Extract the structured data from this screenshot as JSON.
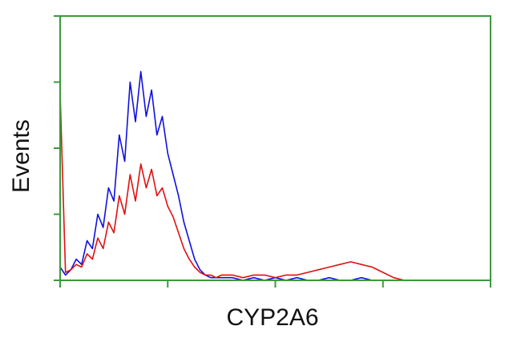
{
  "chart_data": {
    "type": "line",
    "x_label": "CYP2A6",
    "y_label": "Events",
    "x": [
      0,
      0.05,
      0.1,
      0.15,
      0.2,
      0.25,
      0.3,
      0.35,
      0.4,
      0.45,
      0.5,
      0.55,
      0.6,
      0.65,
      0.7,
      0.75,
      0.8,
      0.85,
      0.9,
      0.95,
      1.0,
      1.05,
      1.1,
      1.15,
      1.2,
      1.25,
      1.3,
      1.35,
      1.4,
      1.45,
      1.5,
      1.6,
      1.7,
      1.8,
      1.9,
      2.0,
      2.1,
      2.2,
      2.3,
      2.4,
      2.5,
      2.6,
      2.7,
      2.8,
      2.9,
      3.0,
      3.1,
      3.2
    ],
    "series": [
      {
        "color": "#1010e0",
        "values": [
          5,
          2,
          4,
          8,
          6,
          15,
          12,
          25,
          20,
          35,
          30,
          55,
          45,
          75,
          60,
          79,
          62,
          72,
          55,
          62,
          48,
          40,
          32,
          22,
          15,
          8,
          4,
          2,
          1,
          1,
          1,
          1,
          0,
          1,
          0,
          1,
          0,
          1,
          0,
          0,
          1,
          0,
          0,
          1,
          0,
          0,
          0,
          0
        ]
      },
      {
        "color": "#e01010",
        "values": [
          71,
          3,
          4,
          6,
          5,
          10,
          8,
          16,
          12,
          22,
          18,
          32,
          25,
          40,
          30,
          44,
          35,
          42,
          32,
          35,
          28,
          24,
          18,
          12,
          8,
          5,
          3,
          2,
          2,
          1,
          2,
          2,
          1,
          2,
          2,
          1,
          2,
          2,
          3,
          4,
          5,
          6,
          7,
          6,
          5,
          3,
          1,
          0
        ]
      }
    ],
    "xlim": [
      0,
      4
    ],
    "xticks": [
      0,
      1,
      2,
      3,
      4
    ],
    "ylim": [
      0,
      100
    ],
    "yticks": [
      0,
      25,
      50,
      75,
      100
    ],
    "frame_color": "#3a9a3a"
  }
}
